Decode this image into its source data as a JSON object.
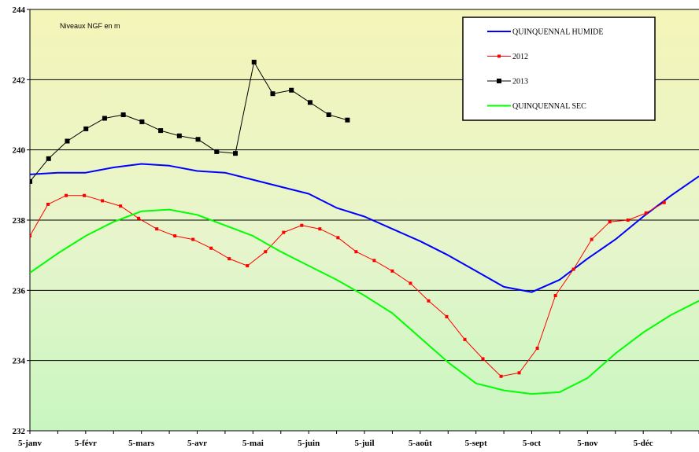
{
  "chart_data": {
    "type": "line",
    "note": "Niveaux NGF en m",
    "ylim": [
      232,
      244
    ],
    "yticks": [
      232,
      234,
      236,
      238,
      240,
      242,
      244
    ],
    "xlim": [
      0,
      24
    ],
    "xticks": [
      {
        "label": "5-janv",
        "x": 0
      },
      {
        "label": "5-févr",
        "x": 2
      },
      {
        "label": "5-mars",
        "x": 4
      },
      {
        "label": "5-avr",
        "x": 6
      },
      {
        "label": "5-mai",
        "x": 8
      },
      {
        "label": "5-juin",
        "x": 10
      },
      {
        "label": "5-juil",
        "x": 12
      },
      {
        "label": "5-août",
        "x": 14
      },
      {
        "label": "5-sept",
        "x": 16
      },
      {
        "label": "5-oct",
        "x": 18
      },
      {
        "label": "5-nov",
        "x": 20
      },
      {
        "label": "5-déc",
        "x": 22
      }
    ],
    "grid": "horizontal",
    "legend_position": "top-right",
    "series": [
      {
        "name": "QUINQUENNAL HUMIDE",
        "color": "#0000ff",
        "marker": "none",
        "width": 2,
        "points": [
          [
            0,
            239.3
          ],
          [
            1,
            239.35
          ],
          [
            2,
            239.35
          ],
          [
            3,
            239.5
          ],
          [
            4,
            239.6
          ],
          [
            5,
            239.55
          ],
          [
            6,
            239.4
          ],
          [
            7,
            239.35
          ],
          [
            8,
            239.15
          ],
          [
            9,
            238.95
          ],
          [
            10,
            238.75
          ],
          [
            11,
            238.35
          ],
          [
            12,
            238.1
          ],
          [
            13,
            237.75
          ],
          [
            14,
            237.4
          ],
          [
            15,
            237.0
          ],
          [
            16,
            236.55
          ],
          [
            17,
            236.1
          ],
          [
            18,
            235.95
          ],
          [
            19,
            236.3
          ],
          [
            20,
            236.9
          ],
          [
            21,
            237.45
          ],
          [
            22,
            238.1
          ],
          [
            23,
            238.7
          ],
          [
            24,
            239.25
          ]
        ]
      },
      {
        "name": "2012",
        "color": "#ff0000",
        "marker": "square-small",
        "width": 1,
        "points": [
          [
            0,
            237.55
          ],
          [
            0.65,
            238.45
          ],
          [
            1.3,
            238.7
          ],
          [
            1.95,
            238.7
          ],
          [
            2.6,
            238.55
          ],
          [
            3.25,
            238.4
          ],
          [
            3.9,
            238.05
          ],
          [
            4.55,
            237.75
          ],
          [
            5.2,
            237.55
          ],
          [
            5.85,
            237.45
          ],
          [
            6.5,
            237.2
          ],
          [
            7.15,
            236.9
          ],
          [
            7.8,
            236.7
          ],
          [
            8.45,
            237.1
          ],
          [
            9.1,
            237.65
          ],
          [
            9.75,
            237.85
          ],
          [
            10.4,
            237.75
          ],
          [
            11.05,
            237.5
          ],
          [
            11.7,
            237.1
          ],
          [
            12.35,
            236.85
          ],
          [
            13.0,
            236.55
          ],
          [
            13.65,
            236.2
          ],
          [
            14.3,
            235.7
          ],
          [
            14.95,
            235.25
          ],
          [
            15.6,
            234.6
          ],
          [
            16.25,
            234.05
          ],
          [
            16.9,
            233.55
          ],
          [
            17.55,
            233.65
          ],
          [
            18.2,
            234.35
          ],
          [
            18.85,
            235.85
          ],
          [
            19.5,
            236.6
          ],
          [
            20.15,
            237.45
          ],
          [
            20.8,
            237.95
          ],
          [
            21.45,
            238.0
          ],
          [
            22.1,
            238.2
          ],
          [
            22.75,
            238.5
          ]
        ]
      },
      {
        "name": "2013",
        "color": "#000000",
        "marker": "square",
        "width": 1,
        "points": [
          [
            0,
            239.1
          ],
          [
            0.67,
            239.75
          ],
          [
            1.34,
            240.25
          ],
          [
            2.01,
            240.6
          ],
          [
            2.68,
            240.9
          ],
          [
            3.35,
            241.0
          ],
          [
            4.02,
            240.8
          ],
          [
            4.69,
            240.55
          ],
          [
            5.36,
            240.4
          ],
          [
            6.03,
            240.3
          ],
          [
            6.7,
            239.95
          ],
          [
            7.37,
            239.9
          ],
          [
            8.04,
            242.5
          ],
          [
            8.71,
            241.6
          ],
          [
            9.38,
            241.7
          ],
          [
            10.05,
            241.35
          ],
          [
            10.72,
            241.0
          ],
          [
            11.39,
            240.85
          ]
        ]
      },
      {
        "name": "QUINQUENNAL SEC",
        "color": "#00ff00",
        "marker": "none",
        "width": 2,
        "points": [
          [
            0,
            236.5
          ],
          [
            1,
            237.05
          ],
          [
            2,
            237.55
          ],
          [
            3,
            237.95
          ],
          [
            4,
            238.25
          ],
          [
            5,
            238.3
          ],
          [
            6,
            238.15
          ],
          [
            7,
            237.85
          ],
          [
            8,
            237.55
          ],
          [
            9,
            237.1
          ],
          [
            10,
            236.7
          ],
          [
            11,
            236.3
          ],
          [
            12,
            235.85
          ],
          [
            13,
            235.35
          ],
          [
            14,
            234.65
          ],
          [
            15,
            233.95
          ],
          [
            16,
            233.35
          ],
          [
            17,
            233.15
          ],
          [
            18,
            233.05
          ],
          [
            19,
            233.1
          ],
          [
            20,
            233.5
          ],
          [
            21,
            234.2
          ],
          [
            22,
            234.8
          ],
          [
            23,
            235.3
          ],
          [
            24,
            235.7
          ]
        ]
      }
    ]
  }
}
